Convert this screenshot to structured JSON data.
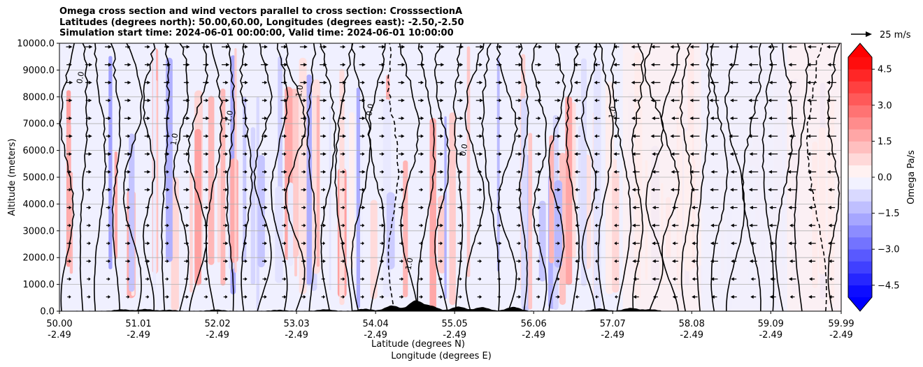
{
  "chart_data": {
    "type": "contour",
    "title_lines": [
      "Omega cross section and wind vectors parallel to cross section: CrosssectionA",
      "Latitudes (degrees north): 50.00,60.00, Longitudes (degrees east): -2.50,-2.50",
      "Simulation start time: 2024-06-01 00:00:00, Valid time: 2024-06-01 10:00:00"
    ],
    "xlabel_lat": "Latitude (degrees N)",
    "xlabel_lon": "Longitude (degrees E)",
    "ylabel": "Altitude (meters)",
    "x_range": [
      50.0,
      59.99
    ],
    "ylim": [
      0,
      10000
    ],
    "x_ticks": [
      {
        "lat": "50.00",
        "lon": "-2.49",
        "value": 50.0
      },
      {
        "lat": "51.01",
        "lon": "-2.49",
        "value": 51.01
      },
      {
        "lat": "52.02",
        "lon": "-2.49",
        "value": 52.02
      },
      {
        "lat": "53.03",
        "lon": "-2.49",
        "value": 53.03
      },
      {
        "lat": "54.04",
        "lon": "-2.49",
        "value": 54.04
      },
      {
        "lat": "55.05",
        "lon": "-2.49",
        "value": 55.05
      },
      {
        "lat": "56.06",
        "lon": "-2.49",
        "value": 56.06
      },
      {
        "lat": "57.07",
        "lon": "-2.49",
        "value": 57.07
      },
      {
        "lat": "58.08",
        "lon": "-2.49",
        "value": 58.08
      },
      {
        "lat": "59.09",
        "lon": "-2.49",
        "value": 59.09
      },
      {
        "lat": "59.99",
        "lon": "-2.49",
        "value": 59.99
      }
    ],
    "y_ticks": [
      {
        "label": "0.0",
        "value": 0
      },
      {
        "label": "1000.0",
        "value": 1000
      },
      {
        "label": "2000.0",
        "value": 2000
      },
      {
        "label": "3000.0",
        "value": 3000
      },
      {
        "label": "4000.0",
        "value": 4000
      },
      {
        "label": "5000.0",
        "value": 5000
      },
      {
        "label": "6000.0",
        "value": 6000
      },
      {
        "label": "7000.0",
        "value": 7000
      },
      {
        "label": "8000.0",
        "value": 8000
      },
      {
        "label": "9000.0",
        "value": 9000
      },
      {
        "label": "10000.0",
        "value": 10000
      }
    ],
    "grid": true,
    "colorbar": {
      "label": "Omega Pa/s",
      "range": [
        -5.0,
        5.0
      ],
      "step": 0.5,
      "extend": "both",
      "ticks": [
        {
          "label": "4.5",
          "value": 4.5
        },
        {
          "label": "3.0",
          "value": 3.0
        },
        {
          "label": "1.5",
          "value": 1.5
        },
        {
          "label": "0.0",
          "value": 0.0
        },
        {
          "label": "−1.5",
          "value": -1.5
        },
        {
          "label": "−3.0",
          "value": -3.0
        },
        {
          "label": "−4.5",
          "value": -4.5
        }
      ]
    },
    "quiver_key": {
      "label": "25 m/s",
      "speed": 25
    },
    "vector_reversal_lat": 56.6,
    "terrain_bumps": [
      {
        "lat": 50.8,
        "h": 60
      },
      {
        "lat": 51.1,
        "h": 70
      },
      {
        "lat": 51.4,
        "h": 40
      },
      {
        "lat": 52.0,
        "h": 50
      },
      {
        "lat": 52.8,
        "h": 40
      },
      {
        "lat": 53.4,
        "h": 60
      },
      {
        "lat": 53.9,
        "h": 80
      },
      {
        "lat": 54.25,
        "h": 200
      },
      {
        "lat": 54.55,
        "h": 380
      },
      {
        "lat": 54.75,
        "h": 180
      },
      {
        "lat": 55.1,
        "h": 160
      },
      {
        "lat": 55.4,
        "h": 140
      },
      {
        "lat": 55.8,
        "h": 150
      },
      {
        "lat": 56.9,
        "h": 90
      },
      {
        "lat": 57.3,
        "h": 110
      },
      {
        "lat": 57.55,
        "h": 60
      }
    ],
    "contour_label_texts": [
      "0.0",
      "1.0",
      "-1.0",
      "1.0",
      "0.0",
      "-1.0",
      "0.0",
      "1.0"
    ]
  }
}
